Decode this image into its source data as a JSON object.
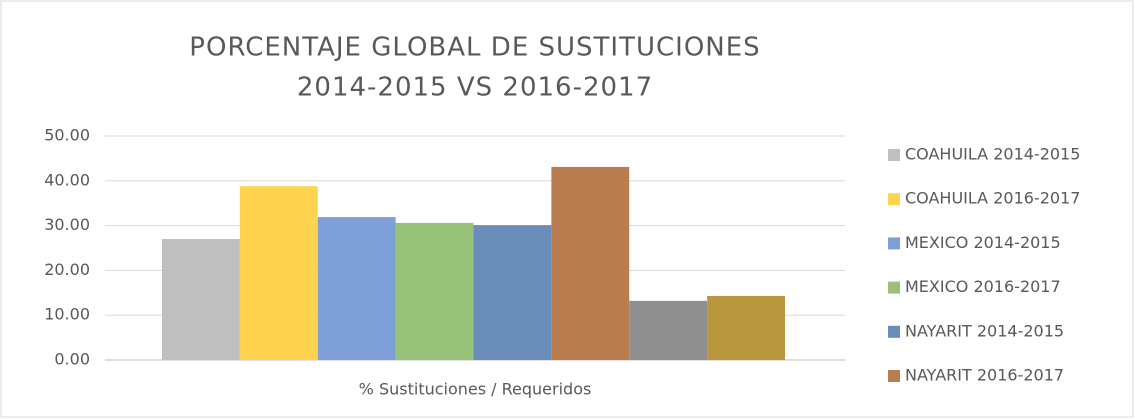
{
  "chart_data": {
    "type": "bar",
    "title": [
      "PORCENTAJE GLOBAL DE SUSTITUCIONES",
      "2014-2015 VS 2016-2017"
    ],
    "categories": [
      "% Sustituciones / Requeridos"
    ],
    "series": [
      {
        "name": "COAHUILA 2014-2015",
        "color": "#bfbfbf",
        "values": [
          27.0
        ]
      },
      {
        "name": "COAHUILA 2016-2017",
        "color": "#ffd34f",
        "values": [
          38.8
        ]
      },
      {
        "name": "MEXICO 2014-2015",
        "color": "#7f9fd9",
        "values": [
          31.9
        ]
      },
      {
        "name": "MEXICO 2016-2017",
        "color": "#98c27a",
        "values": [
          30.6
        ]
      },
      {
        "name": "NAYARIT 2014-2015",
        "color": "#6a8cb8",
        "values": [
          30.1
        ]
      },
      {
        "name": "NAYARIT 2016-2017",
        "color": "#b97d50",
        "values": [
          43.1
        ]
      },
      {
        "name": null,
        "color": "#8f8f8f",
        "values": [
          13.2
        ]
      },
      {
        "name": null,
        "color": "#b8973f",
        "values": [
          14.3
        ]
      }
    ],
    "ylim": [
      0,
      50
    ],
    "yticks": [
      {
        "value": 0,
        "label": "0.00"
      },
      {
        "value": 10,
        "label": "10.00"
      },
      {
        "value": 20,
        "label": "20.00"
      },
      {
        "value": 30,
        "label": "30.00"
      },
      {
        "value": 40,
        "label": "40.00"
      },
      {
        "value": 50,
        "label": "50.00"
      }
    ],
    "grid": true,
    "legend": "right"
  }
}
